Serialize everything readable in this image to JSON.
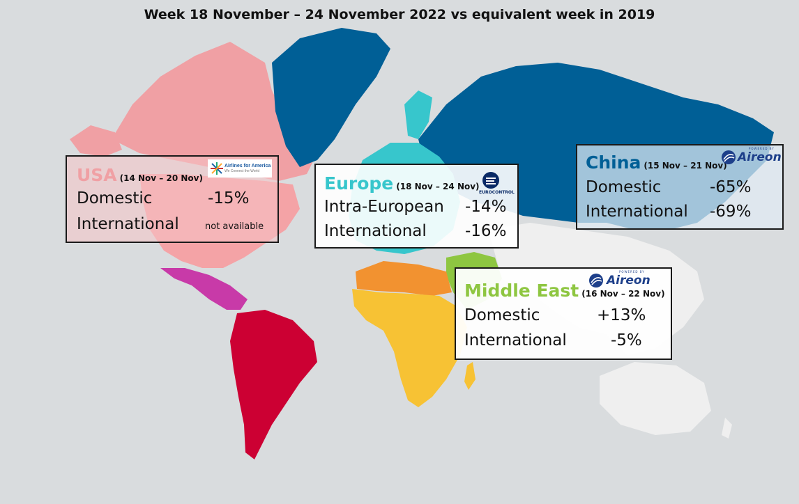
{
  "title": "Week 18 November – 24 November 2022 vs equivalent week in 2019",
  "colors": {
    "ocean": "#d9dcde",
    "usa": "#f4a3a6",
    "canada": "#f0a0a4",
    "central_america": "#c83aa8",
    "south_america": "#cc0033",
    "europe": "#37c6cc",
    "north_africa": "#f29230",
    "africa": "#f7c234",
    "middle_east": "#8ec641",
    "russia_asia": "#005f96",
    "greenland": "#005f96",
    "rest": "#eeeeee",
    "usa_label": "#f0a0a4",
    "europe_label": "#37c6cc",
    "china_label": "#005f96",
    "mideast_label": "#8ec641"
  },
  "panels": {
    "usa": {
      "region": "USA",
      "period": "(14 Nov – 20 Nov)",
      "rows": [
        {
          "label": "Domestic",
          "value": "-15%"
        },
        {
          "label": "International",
          "value": "not available"
        }
      ],
      "logo": {
        "icon": "airlines-for-america-logo",
        "name": "Airlines for America",
        "tagline": "We Connect the World"
      }
    },
    "europe": {
      "region": "Europe",
      "period": "(18 Nov – 24 Nov)",
      "rows": [
        {
          "label": "Intra-European",
          "value": "-14%"
        },
        {
          "label": "International",
          "value": "-16%"
        }
      ],
      "logo": {
        "icon": "eurocontrol-logo",
        "name": "EUROCONTROL"
      }
    },
    "china": {
      "region": "China",
      "period": "(15 Nov – 21 Nov)",
      "rows": [
        {
          "label": "Domestic",
          "value": "-65%"
        },
        {
          "label": "International",
          "value": "-69%"
        }
      ],
      "logo": {
        "icon": "aireon-logo",
        "powered": "POWERED BY",
        "name": "Aireon"
      }
    },
    "mideast": {
      "region": "Middle East",
      "period": "(16 Nov – 22 Nov)",
      "rows": [
        {
          "label": "Domestic",
          "value": "+13%"
        },
        {
          "label": "International",
          "value": "-5%"
        }
      ],
      "logo": {
        "icon": "aireon-logo",
        "powered": "POWERED BY",
        "name": "Aireon"
      }
    }
  }
}
